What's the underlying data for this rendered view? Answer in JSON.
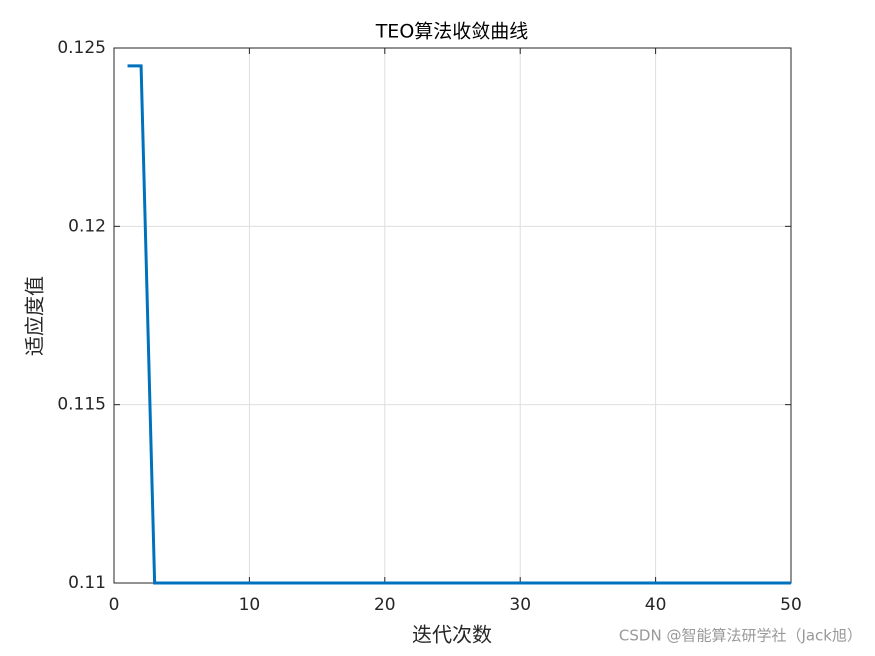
{
  "chart_data": {
    "type": "line",
    "title": "TEO算法收敛曲线",
    "xlabel": "迭代次数",
    "ylabel": "适应度值",
    "watermark": "CSDN @智能算法研学社（Jack旭）",
    "x": [
      1,
      2,
      3,
      4,
      5,
      6,
      7,
      8,
      9,
      10,
      11,
      12,
      13,
      14,
      15,
      16,
      17,
      18,
      19,
      20,
      21,
      22,
      23,
      24,
      25,
      26,
      27,
      28,
      29,
      30,
      31,
      32,
      33,
      34,
      35,
      36,
      37,
      38,
      39,
      40,
      41,
      42,
      43,
      44,
      45,
      46,
      47,
      48,
      49,
      50
    ],
    "values": [
      0.1245,
      0.1245,
      0.11,
      0.11,
      0.11,
      0.11,
      0.11,
      0.11,
      0.11,
      0.11,
      0.11,
      0.11,
      0.11,
      0.11,
      0.11,
      0.11,
      0.11,
      0.11,
      0.11,
      0.11,
      0.11,
      0.11,
      0.11,
      0.11,
      0.11,
      0.11,
      0.11,
      0.11,
      0.11,
      0.11,
      0.11,
      0.11,
      0.11,
      0.11,
      0.11,
      0.11,
      0.11,
      0.11,
      0.11,
      0.11,
      0.11,
      0.11,
      0.11,
      0.11,
      0.11,
      0.11,
      0.11,
      0.11,
      0.11,
      0.11
    ],
    "color": "#0072bd",
    "xlim": [
      0,
      50
    ],
    "xticks": [
      0,
      10,
      20,
      30,
      40,
      50
    ],
    "ylim": [
      0.11,
      0.125
    ],
    "yticks": [
      0.11,
      0.115,
      0.12,
      0.125
    ],
    "grid": true
  }
}
